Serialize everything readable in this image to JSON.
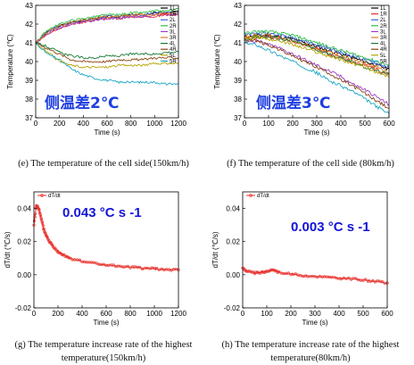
{
  "chart_data": [
    {
      "type": "line",
      "ylabel": "Temperature (℃)",
      "xlabel": "Time (s)",
      "xlim": [
        0,
        1200
      ],
      "ylim": [
        37,
        43
      ],
      "xticks": [
        "0",
        "200",
        "400",
        "600",
        "800",
        "1000",
        "1200"
      ],
      "yticks": [
        "37",
        "38",
        "39",
        "40",
        "41",
        "42",
        "43"
      ],
      "annotation": "侧温差2℃",
      "caption": "(e) The temperature of the cell side(150km/h)",
      "legend_position": "top-right",
      "series": [
        {
          "name": "1L",
          "color": "#000000",
          "x": [
            0,
            100,
            200,
            300,
            400,
            500,
            600,
            700,
            800,
            900,
            1000,
            1100,
            1200
          ],
          "y": [
            41.0,
            41.6,
            41.9,
            42.1,
            42.2,
            42.3,
            42.4,
            42.4,
            42.5,
            42.5,
            42.6,
            42.6,
            42.7
          ]
        },
        {
          "name": "1R",
          "color": "#e8322d",
          "x": [
            0,
            100,
            200,
            300,
            400,
            500,
            600,
            700,
            800,
            900,
            1000,
            1100,
            1200
          ],
          "y": [
            41.0,
            41.5,
            41.8,
            42.0,
            42.1,
            42.2,
            42.3,
            42.3,
            42.4,
            42.4,
            42.4,
            42.5,
            42.5
          ]
        },
        {
          "name": "2L",
          "color": "#3a62d8",
          "x": [
            0,
            100,
            200,
            300,
            400,
            500,
            600,
            700,
            800,
            900,
            1000,
            1100,
            1200
          ],
          "y": [
            41.0,
            41.6,
            41.9,
            42.1,
            42.2,
            42.3,
            42.4,
            42.4,
            42.5,
            42.5,
            42.6,
            42.6,
            42.6
          ]
        },
        {
          "name": "2R",
          "color": "#2fbf4a",
          "x": [
            0,
            100,
            200,
            300,
            400,
            500,
            600,
            700,
            800,
            900,
            1000,
            1100,
            1200
          ],
          "y": [
            41.0,
            41.7,
            42.0,
            42.2,
            42.3,
            42.4,
            42.5,
            42.5,
            42.6,
            42.6,
            42.7,
            42.7,
            42.8
          ]
        },
        {
          "name": "3L",
          "color": "#9b3fc8",
          "x": [
            0,
            100,
            200,
            300,
            400,
            500,
            600,
            700,
            800,
            900,
            1000,
            1100,
            1200
          ],
          "y": [
            41.0,
            41.5,
            41.8,
            42.0,
            42.1,
            42.2,
            42.3,
            42.3,
            42.4,
            42.4,
            42.5,
            42.5,
            42.5
          ]
        },
        {
          "name": "3R",
          "color": "#e07a1f",
          "x": [
            0,
            100,
            200,
            300,
            400,
            500,
            600,
            700,
            800,
            900,
            1000,
            1100,
            1200
          ],
          "y": [
            41.0,
            41.6,
            41.9,
            42.1,
            42.2,
            42.3,
            42.4,
            42.4,
            42.5,
            42.5,
            42.5,
            42.6,
            42.6
          ]
        },
        {
          "name": "4L",
          "color": "#1a7a3a",
          "x": [
            0,
            100,
            200,
            300,
            400,
            500,
            600,
            700,
            800,
            900,
            1000,
            1100,
            1200
          ],
          "y": [
            41.0,
            40.8,
            40.5,
            40.3,
            40.2,
            40.2,
            40.3,
            40.3,
            40.4,
            40.4,
            40.4,
            40.5,
            40.5
          ]
        },
        {
          "name": "4R",
          "color": "#8b4513",
          "x": [
            0,
            100,
            200,
            300,
            400,
            500,
            600,
            700,
            800,
            900,
            1000,
            1100,
            1200
          ],
          "y": [
            41.0,
            40.7,
            40.4,
            40.1,
            40.0,
            40.0,
            40.0,
            40.1,
            40.1,
            40.1,
            40.2,
            40.2,
            40.2
          ]
        },
        {
          "name": "5L",
          "color": "#b5a300",
          "x": [
            0,
            100,
            200,
            300,
            400,
            500,
            600,
            700,
            800,
            900,
            1000,
            1100,
            1200
          ],
          "y": [
            41.0,
            40.5,
            40.0,
            39.8,
            39.7,
            39.7,
            39.7,
            39.8,
            39.8,
            39.8,
            39.9,
            39.9,
            39.9
          ]
        },
        {
          "name": "5R",
          "color": "#1aa6c4",
          "x": [
            0,
            100,
            200,
            300,
            400,
            500,
            600,
            700,
            800,
            900,
            1000,
            1100,
            1200
          ],
          "y": [
            41.0,
            40.4,
            40.1,
            39.6,
            39.3,
            39.1,
            39.0,
            38.9,
            38.9,
            38.9,
            38.9,
            38.8,
            38.8
          ]
        }
      ]
    },
    {
      "type": "line",
      "ylabel": "Temperature (℃)",
      "xlabel": "Time (s)",
      "xlim": [
        0,
        600
      ],
      "ylim": [
        37,
        43
      ],
      "xticks": [
        "0",
        "100",
        "200",
        "300",
        "400",
        "500",
        "600"
      ],
      "yticks": [
        "37",
        "38",
        "39",
        "40",
        "41",
        "42",
        "43"
      ],
      "annotation": "侧温差3℃",
      "caption": "(f) The temperature of the cell side (80km/h)",
      "legend_position": "top-right",
      "series": [
        {
          "name": "1L",
          "color": "#000000",
          "x": [
            0,
            50,
            100,
            150,
            200,
            250,
            300,
            350,
            400,
            450,
            500,
            550,
            600
          ],
          "y": [
            41.3,
            41.4,
            41.4,
            41.3,
            41.2,
            41.0,
            40.8,
            40.6,
            40.4,
            40.2,
            40.0,
            39.8,
            39.6
          ]
        },
        {
          "name": "1R",
          "color": "#e8322d",
          "x": [
            0,
            50,
            100,
            150,
            200,
            250,
            300,
            350,
            400,
            450,
            500,
            550,
            600
          ],
          "y": [
            41.2,
            41.3,
            41.3,
            41.2,
            41.1,
            40.9,
            40.7,
            40.4,
            40.2,
            40.0,
            39.8,
            39.6,
            39.3
          ]
        },
        {
          "name": "2L",
          "color": "#3a62d8",
          "x": [
            0,
            50,
            100,
            150,
            200,
            250,
            300,
            350,
            400,
            450,
            500,
            550,
            600
          ],
          "y": [
            41.4,
            41.5,
            41.5,
            41.4,
            41.3,
            41.1,
            40.9,
            40.7,
            40.5,
            40.3,
            40.1,
            39.9,
            39.7
          ]
        },
        {
          "name": "2R",
          "color": "#2fbf4a",
          "x": [
            0,
            50,
            100,
            150,
            200,
            250,
            300,
            350,
            400,
            450,
            500,
            550,
            600
          ],
          "y": [
            41.5,
            41.6,
            41.6,
            41.5,
            41.4,
            41.2,
            41.0,
            40.8,
            40.6,
            40.4,
            40.2,
            40.0,
            39.8
          ]
        },
        {
          "name": "3L",
          "color": "#9b3fc8",
          "x": [
            0,
            50,
            100,
            150,
            200,
            250,
            300,
            350,
            400,
            450,
            500,
            550,
            600
          ],
          "y": [
            41.1,
            41.1,
            40.9,
            40.7,
            40.4,
            40.1,
            39.8,
            39.5,
            39.2,
            38.8,
            38.5,
            38.1,
            37.7
          ]
        },
        {
          "name": "3R",
          "color": "#e07a1f",
          "x": [
            0,
            50,
            100,
            150,
            200,
            250,
            300,
            350,
            400,
            450,
            500,
            550,
            600
          ],
          "y": [
            41.3,
            41.4,
            41.4,
            41.3,
            41.1,
            40.9,
            40.7,
            40.5,
            40.3,
            40.1,
            39.9,
            39.7,
            39.4
          ]
        },
        {
          "name": "4L",
          "color": "#1a7a3a",
          "x": [
            0,
            50,
            100,
            150,
            200,
            250,
            300,
            350,
            400,
            450,
            500,
            550,
            600
          ],
          "y": [
            41.2,
            41.3,
            41.3,
            41.2,
            41.1,
            40.9,
            40.6,
            40.4,
            40.2,
            40.0,
            39.7,
            39.5,
            39.3
          ]
        },
        {
          "name": "4R",
          "color": "#8b4513",
          "x": [
            0,
            50,
            100,
            150,
            200,
            250,
            300,
            350,
            400,
            450,
            500,
            550,
            600
          ],
          "y": [
            41.2,
            41.1,
            40.9,
            40.6,
            40.3,
            40.0,
            39.7,
            39.4,
            39.0,
            38.7,
            38.3,
            37.9,
            37.5
          ]
        },
        {
          "name": "5L",
          "color": "#b5a300",
          "x": [
            0,
            50,
            100,
            150,
            200,
            250,
            300,
            350,
            400,
            450,
            500,
            550,
            600
          ],
          "y": [
            41.2,
            41.3,
            41.2,
            41.1,
            40.9,
            40.7,
            40.5,
            40.3,
            40.1,
            39.9,
            39.7,
            39.4,
            39.2
          ]
        },
        {
          "name": "5R",
          "color": "#1aa6c4",
          "x": [
            0,
            50,
            100,
            150,
            200,
            250,
            300,
            350,
            400,
            450,
            500,
            550,
            600
          ],
          "y": [
            41.0,
            40.9,
            40.6,
            40.3,
            40.0,
            39.7,
            39.4,
            39.0,
            38.7,
            38.4,
            38.0,
            37.6,
            37.2
          ]
        }
      ]
    },
    {
      "type": "line",
      "ylabel": "dT/dt (℃/s)",
      "xlabel": "Time (s)",
      "xlim": [
        0,
        1200
      ],
      "ylim": [
        -0.02,
        0.05
      ],
      "xticks": [
        "0",
        "200",
        "400",
        "600",
        "800",
        "1000",
        "1200"
      ],
      "yticks": [
        "-0.02",
        "0.00",
        "0.02",
        "0.04"
      ],
      "annotation": "0.043 °C s -1",
      "caption_lines": [
        "(g) The temperature increase rate of the highest",
        "temperature(150km/h)"
      ],
      "legend_position": "top-left",
      "series": [
        {
          "name": "dT/dt",
          "color": "#e8322d",
          "x": [
            0,
            20,
            40,
            60,
            80,
            100,
            130,
            160,
            200,
            250,
            300,
            400,
            500,
            600,
            700,
            800,
            900,
            1000,
            1100,
            1200
          ],
          "y": [
            0.03,
            0.042,
            0.04,
            0.034,
            0.028,
            0.024,
            0.02,
            0.017,
            0.014,
            0.012,
            0.01,
            0.008,
            0.007,
            0.006,
            0.005,
            0.0045,
            0.004,
            0.0035,
            0.003,
            0.003
          ]
        }
      ]
    },
    {
      "type": "line",
      "ylabel": "dT/dt (℃/s)",
      "xlabel": "Time (s)",
      "xlim": [
        0,
        600
      ],
      "ylim": [
        -0.02,
        0.05
      ],
      "xticks": [
        "0",
        "100",
        "200",
        "300",
        "400",
        "500",
        "600"
      ],
      "yticks": [
        "-0.02",
        "0.00",
        "0.02",
        "0.04"
      ],
      "annotation": "0.003 °C s -1",
      "caption_lines": [
        "(h) The temperature increase rate of the highest",
        "temperature(80km/h)"
      ],
      "legend_position": "top-left",
      "series": [
        {
          "name": "dT/dt",
          "color": "#e8322d",
          "x": [
            0,
            20,
            50,
            80,
            100,
            125,
            150,
            200,
            250,
            300,
            350,
            400,
            450,
            500,
            550,
            600
          ],
          "y": [
            0.004,
            0.002,
            0.001,
            0.0015,
            0.002,
            0.003,
            0.0015,
            0.0005,
            -0.0005,
            -0.001,
            -0.0015,
            -0.002,
            -0.0025,
            -0.003,
            -0.004,
            -0.005
          ]
        }
      ]
    }
  ]
}
